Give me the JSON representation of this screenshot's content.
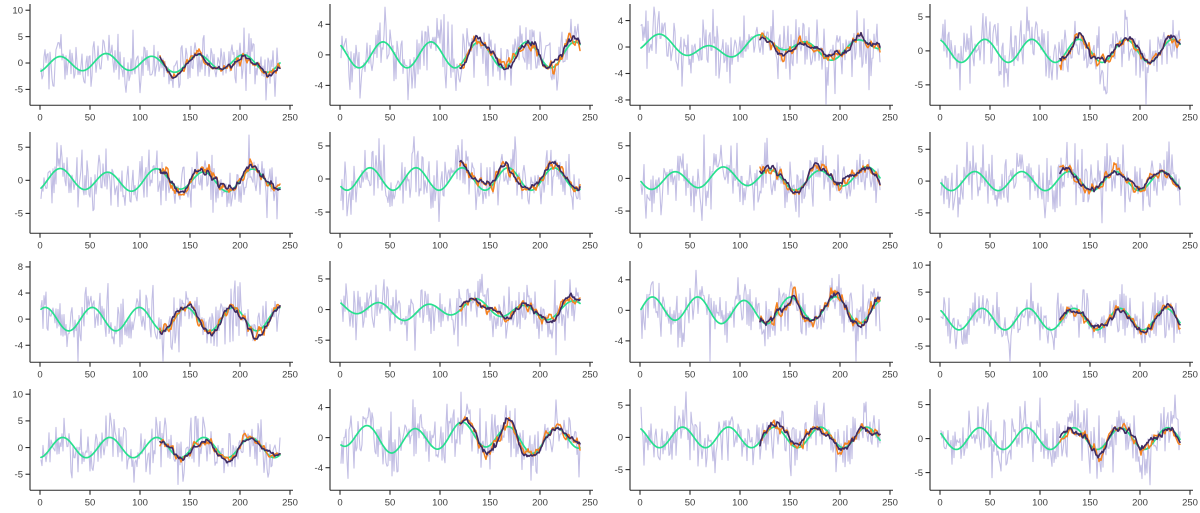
{
  "figure": {
    "background": "#ffffff",
    "grid_rows": 4,
    "grid_cols": 4
  },
  "chart_data": {
    "type": "line",
    "title": "",
    "xlabel": "",
    "ylabel": "",
    "layout": {
      "rows": 4,
      "cols": 4,
      "grid": "off",
      "legend": "none"
    },
    "x": {
      "lim": [
        -10,
        253
      ],
      "ticks": [
        0,
        50,
        100,
        150,
        200,
        250
      ],
      "data_start": 1,
      "data_end": 240,
      "overlay_start": 120
    },
    "axis_style": {
      "spine_color": "#2a2a2a",
      "tick_color": "#2a2a2a",
      "label_color": "#3d3d3d",
      "font_size": 9.5,
      "tick_len": 4.5
    },
    "series_style": [
      {
        "name": "observed-noisy",
        "color": "#b3aedd",
        "opacity": 0.8,
        "width": 1.1,
        "x_start": 1
      },
      {
        "name": "true-signal-smooth",
        "color": "#27e08e",
        "opacity": 1,
        "width": 1.7,
        "x_start": 1
      },
      {
        "name": "estimate-orange",
        "color": "#f5821f",
        "opacity": 1,
        "width": 1.5,
        "x_start": 120
      },
      {
        "name": "estimate-dark-purple",
        "color": "#3d2b63",
        "opacity": 1,
        "width": 1.6,
        "x_start": 120
      }
    ],
    "panels": [
      {
        "row": 1,
        "col": 1,
        "yticks": [
          10,
          5,
          0,
          -5
        ],
        "ylim": [
          -8.0,
          10.8
        ],
        "noise_sd": 2.3,
        "seed": 101,
        "signal": {
          "a1": 1.5,
          "t1": 46,
          "p1": 8.5,
          "a2": 0.3,
          "t2": 113,
          "p2": 40
        }
      },
      {
        "row": 1,
        "col": 2,
        "yticks": [
          4,
          0,
          -4
        ],
        "ylim": [
          -6.6,
          6.4
        ],
        "noise_sd": 1.9,
        "seed": 102,
        "signal": {
          "a1": 1.7,
          "t1": 48,
          "p1": 31,
          "a2": 0.0,
          "t2": 100,
          "p2": 0
        }
      },
      {
        "row": 1,
        "col": 3,
        "yticks": [
          4,
          0,
          -4,
          -8
        ],
        "ylim": [
          -8.8,
          6.2
        ],
        "noise_sd": 2.3,
        "seed": 103,
        "signal": {
          "a1": 1.1,
          "t1": 49,
          "p1": 8,
          "a2": 0.9,
          "t2": 117,
          "p2": -16
        }
      },
      {
        "row": 1,
        "col": 4,
        "yticks": [
          5,
          0,
          -5
        ],
        "ylim": [
          -8.0,
          6.6
        ],
        "noise_sd": 2.1,
        "seed": 104,
        "signal": {
          "a1": 1.7,
          "t1": 47,
          "p1": 33,
          "a2": 0.0,
          "t2": 100,
          "p2": 0
        }
      },
      {
        "row": 2,
        "col": 1,
        "yticks": [
          5,
          0,
          -5
        ],
        "ylim": [
          -8.0,
          7.0
        ],
        "noise_sd": 2.1,
        "seed": 105,
        "signal": {
          "a1": 1.5,
          "t1": 48,
          "p1": 8,
          "a2": 0.3,
          "t2": 100,
          "p2": 0
        }
      },
      {
        "row": 2,
        "col": 2,
        "yticks": [
          5,
          0,
          -5
        ],
        "ylim": [
          -8.2,
          6.8
        ],
        "noise_sd": 2.1,
        "seed": 106,
        "signal": {
          "a1": 1.7,
          "t1": 46,
          "p1": 18.5,
          "a2": 0.0,
          "t2": 100,
          "p2": 0
        }
      },
      {
        "row": 2,
        "col": 3,
        "yticks": [
          5,
          0,
          -5
        ],
        "ylim": [
          -8.4,
          6.8
        ],
        "noise_sd": 2.1,
        "seed": 107,
        "signal": {
          "a1": 1.4,
          "t1": 48,
          "p1": 23,
          "a2": 0.4,
          "t2": 130,
          "p2": 60
        }
      },
      {
        "row": 2,
        "col": 4,
        "yticks": [
          5,
          0,
          -5
        ],
        "ylim": [
          -8.2,
          7.4
        ],
        "noise_sd": 2.2,
        "seed": 108,
        "signal": {
          "a1": 1.5,
          "t1": 47,
          "p1": 23,
          "a2": 0.0,
          "t2": 100,
          "p2": 0
        }
      },
      {
        "row": 3,
        "col": 1,
        "yticks": [
          8,
          4,
          0,
          -4
        ],
        "ylim": [
          -6.6,
          8.6
        ],
        "noise_sd": 2.1,
        "seed": 109,
        "signal": {
          "a1": 1.8,
          "t1": 47,
          "p1": -6.5,
          "a2": 0.0,
          "t2": 100,
          "p2": 0
        }
      },
      {
        "row": 3,
        "col": 2,
        "yticks": [
          5,
          0,
          -5
        ],
        "ylim": [
          -8.6,
          7.6
        ],
        "noise_sd": 2.2,
        "seed": 110,
        "signal": {
          "a1": 1.2,
          "t1": 48,
          "p1": 28,
          "a2": 0.6,
          "t2": 125,
          "p2": -25
        }
      },
      {
        "row": 3,
        "col": 3,
        "yticks": [
          4,
          0,
          -4
        ],
        "ylim": [
          -6.8,
          6.2
        ],
        "noise_sd": 1.9,
        "seed": 111,
        "signal": {
          "a1": 1.6,
          "t1": 46,
          "p1": 0.5,
          "a2": 0.3,
          "t2": 140,
          "p2": 0
        }
      },
      {
        "row": 3,
        "col": 4,
        "yticks": [
          10,
          5,
          0,
          -5
        ],
        "ylim": [
          -8.0,
          10.4
        ],
        "noise_sd": 2.4,
        "seed": 112,
        "signal": {
          "a1": 2.0,
          "t1": 46,
          "p1": 30.5,
          "a2": 0.0,
          "t2": 100,
          "p2": 0
        }
      },
      {
        "row": 4,
        "col": 1,
        "yticks": [
          10,
          5,
          0,
          -5
        ],
        "ylim": [
          -8.0,
          10.6
        ],
        "noise_sd": 2.4,
        "seed": 113,
        "signal": {
          "a1": 1.9,
          "t1": 47,
          "p1": 11,
          "a2": 0.0,
          "t2": 100,
          "p2": 0
        }
      },
      {
        "row": 4,
        "col": 2,
        "yticks": [
          4,
          0,
          -4
        ],
        "ylim": [
          -7.0,
          6.2
        ],
        "noise_sd": 1.9,
        "seed": 114,
        "signal": {
          "a1": 1.6,
          "t1": 47,
          "p1": 16,
          "a2": 0.5,
          "t2": 135,
          "p2": -40
        }
      },
      {
        "row": 4,
        "col": 3,
        "yticks": [
          5,
          0,
          -5
        ],
        "ylim": [
          -8.2,
          7.2
        ],
        "noise_sd": 2.1,
        "seed": 115,
        "signal": {
          "a1": 1.6,
          "t1": 46,
          "p1": 31,
          "a2": 0.0,
          "t2": 100,
          "p2": 0
        }
      },
      {
        "row": 4,
        "col": 4,
        "yticks": [
          5,
          0,
          -5
        ],
        "ylim": [
          -7.6,
          7.0
        ],
        "noise_sd": 2.1,
        "seed": 116,
        "signal": {
          "a1": 1.6,
          "t1": 47,
          "p1": 28,
          "a2": 0.0,
          "t2": 100,
          "p2": 0
        }
      }
    ]
  }
}
